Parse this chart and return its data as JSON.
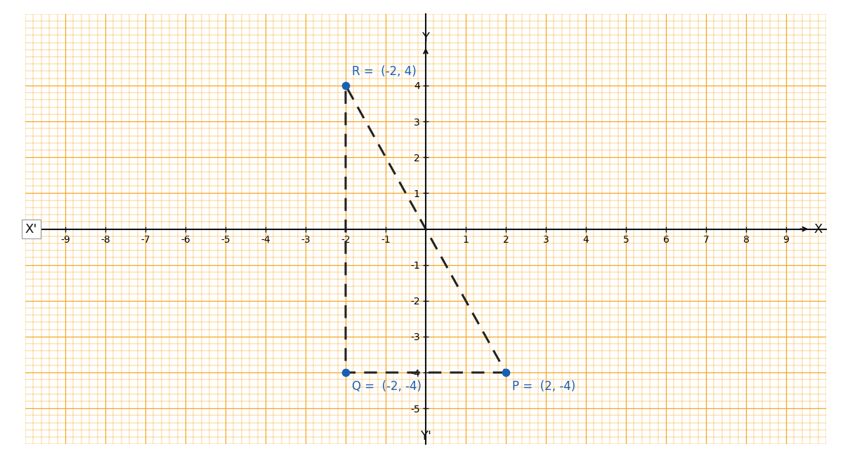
{
  "background_color": "#ffffff",
  "grid_minor_color": "#f5a623",
  "grid_major_color": "#f5a623",
  "axis_color": "#111111",
  "xlim": [
    -9.6,
    9.6
  ],
  "ylim": [
    -5.5,
    5.1
  ],
  "xticks": [
    -9,
    -8,
    -7,
    -6,
    -5,
    -4,
    -3,
    -2,
    -1,
    1,
    2,
    3,
    4,
    5,
    6,
    7,
    8,
    9
  ],
  "yticks": [
    -5,
    -4,
    -3,
    -2,
    -1,
    1,
    2,
    3,
    4
  ],
  "points": {
    "P": [
      2,
      -4
    ],
    "Q": [
      -2,
      -4
    ],
    "R": [
      -2,
      4
    ]
  },
  "point_color": "#1a5fb4",
  "point_size": 55,
  "label_color": "#1a5fb4",
  "label_fontsize": 12,
  "line_color": "#222222",
  "line_style": "--",
  "line_width": 2.2,
  "axis_label_color": "#111111",
  "axis_label_fontsize": 13,
  "tick_fontsize": 11,
  "tick_color": "#333333",
  "xlabel_pos_x": "X",
  "xlabel_neg_x": "X'",
  "ylabel_pos_y": "Y",
  "ylabel_neg_y": "Y'",
  "minor_step": 0.2,
  "major_step": 1.0
}
